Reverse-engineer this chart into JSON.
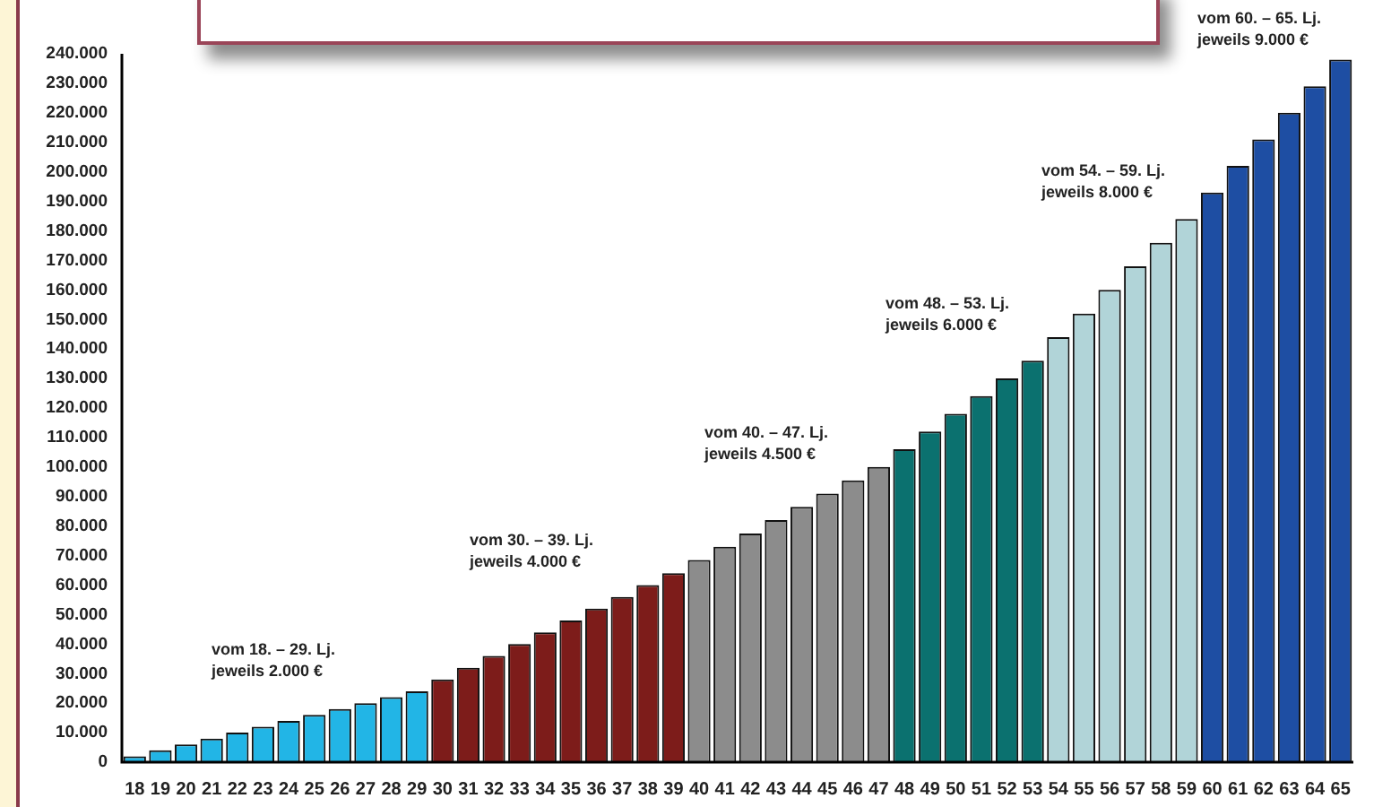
{
  "chart_data": {
    "type": "bar",
    "categories": [
      "18",
      "19",
      "20",
      "21",
      "22",
      "23",
      "24",
      "25",
      "26",
      "27",
      "28",
      "29",
      "30",
      "31",
      "32",
      "33",
      "34",
      "35",
      "36",
      "37",
      "38",
      "39",
      "40",
      "41",
      "42",
      "43",
      "44",
      "45",
      "46",
      "47",
      "48",
      "49",
      "50",
      "51",
      "52",
      "53",
      "54",
      "55",
      "56",
      "57",
      "58",
      "59",
      "60",
      "61",
      "62",
      "63",
      "64",
      "65"
    ],
    "values": [
      2000,
      4000,
      6000,
      8000,
      10000,
      12000,
      14000,
      16000,
      18000,
      20000,
      22000,
      24000,
      28000,
      32000,
      36000,
      40000,
      44000,
      48000,
      52000,
      56000,
      60000,
      64000,
      68500,
      73000,
      77500,
      82000,
      86500,
      91000,
      95500,
      100000,
      106000,
      112000,
      118000,
      124000,
      130000,
      136000,
      144000,
      152000,
      160000,
      168000,
      176000,
      184000,
      193000,
      202000,
      211000,
      220000,
      229000,
      238000
    ],
    "colors": [
      "#22b5e6",
      "#22b5e6",
      "#22b5e6",
      "#22b5e6",
      "#22b5e6",
      "#22b5e6",
      "#22b5e6",
      "#22b5e6",
      "#22b5e6",
      "#22b5e6",
      "#22b5e6",
      "#22b5e6",
      "#7d1c1a",
      "#7d1c1a",
      "#7d1c1a",
      "#7d1c1a",
      "#7d1c1a",
      "#7d1c1a",
      "#7d1c1a",
      "#7d1c1a",
      "#7d1c1a",
      "#7d1c1a",
      "#8c8c8c",
      "#8c8c8c",
      "#8c8c8c",
      "#8c8c8c",
      "#8c8c8c",
      "#8c8c8c",
      "#8c8c8c",
      "#8c8c8c",
      "#0b716f",
      "#0b716f",
      "#0b716f",
      "#0b716f",
      "#0b716f",
      "#0b716f",
      "#b1d4d8",
      "#b1d4d8",
      "#b1d4d8",
      "#b1d4d8",
      "#b1d4d8",
      "#b1d4d8",
      "#1e4ea3",
      "#1e4ea3",
      "#1e4ea3",
      "#1e4ea3",
      "#1e4ea3",
      "#1e4ea3"
    ],
    "ylim": [
      0,
      240000
    ],
    "yticks": [
      {
        "value": 0,
        "label": "0"
      },
      {
        "value": 10000,
        "label": "10.000"
      },
      {
        "value": 20000,
        "label": "20.000"
      },
      {
        "value": 30000,
        "label": "30.000"
      },
      {
        "value": 40000,
        "label": "40.000"
      },
      {
        "value": 50000,
        "label": "50.000"
      },
      {
        "value": 60000,
        "label": "60.000"
      },
      {
        "value": 70000,
        "label": "70.000"
      },
      {
        "value": 80000,
        "label": "80.000"
      },
      {
        "value": 90000,
        "label": "90.000"
      },
      {
        "value": 100000,
        "label": "100.000"
      },
      {
        "value": 110000,
        "label": "110.000"
      },
      {
        "value": 120000,
        "label": "120.000"
      },
      {
        "value": 130000,
        "label": "130.000"
      },
      {
        "value": 140000,
        "label": "140.000"
      },
      {
        "value": 150000,
        "label": "150.000"
      },
      {
        "value": 160000,
        "label": "160.000"
      },
      {
        "value": 170000,
        "label": "170.000"
      },
      {
        "value": 180000,
        "label": "180.000"
      },
      {
        "value": 190000,
        "label": "190.000"
      },
      {
        "value": 200000,
        "label": "200.000"
      },
      {
        "value": 210000,
        "label": "210.000"
      },
      {
        "value": 220000,
        "label": "220.000"
      },
      {
        "value": 230000,
        "label": "230.000"
      },
      {
        "value": 240000,
        "label": "240.000"
      }
    ],
    "annotations": [
      "vom 18. – 29. Lj.\njeweils 2.000 €",
      "vom 30. – 39. Lj.\njeweils 4.000 €",
      "vom 40. – 47. Lj.\njeweils 4.500 €",
      "vom 48. – 53. Lj.\njeweils 6.000 €",
      "vom 54. – 59. Lj.\njeweils 8.000 €",
      "vom 60. – 65. Lj.\njeweils 9.000 €"
    ],
    "grid": false,
    "legend": false
  }
}
